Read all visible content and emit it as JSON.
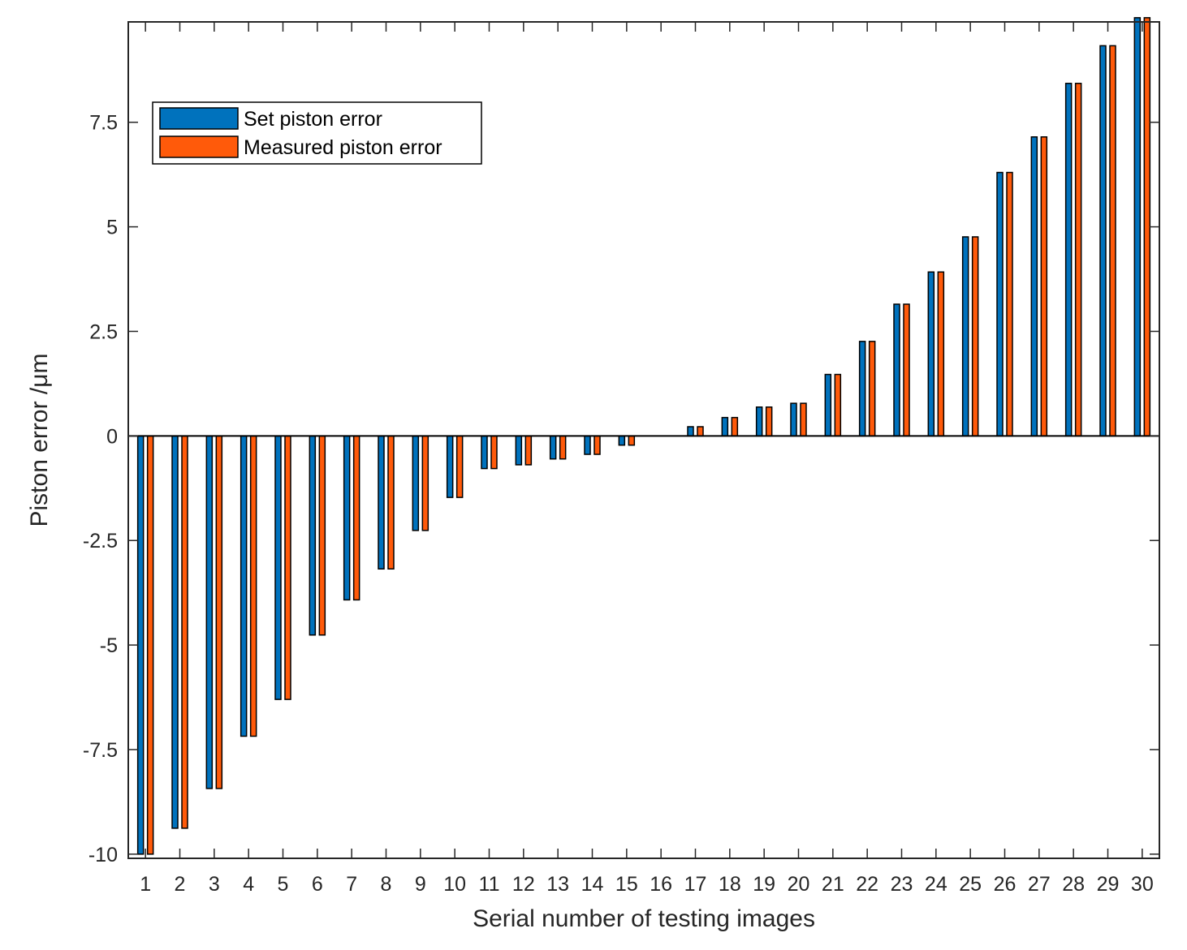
{
  "chart_data": {
    "type": "bar",
    "xlabel": "Serial number of testing images",
    "ylabel": "Piston error /μm",
    "ylim": [
      -10.1,
      9.9
    ],
    "yticks": [
      -10,
      -7.5,
      -5,
      -2.5,
      0,
      2.5,
      5,
      7.5
    ],
    "ytick_labels": [
      "-10",
      "-7.5",
      "-5",
      "-2.5",
      "0",
      "2.5",
      "5",
      "7.5"
    ],
    "categories": [
      "1",
      "2",
      "3",
      "4",
      "5",
      "6",
      "7",
      "8",
      "9",
      "10",
      "11",
      "12",
      "13",
      "14",
      "15",
      "16",
      "17",
      "18",
      "19",
      "20",
      "21",
      "22",
      "23",
      "24",
      "25",
      "26",
      "27",
      "28",
      "29",
      "30"
    ],
    "series": [
      {
        "name": "Set piston error",
        "color": "#0072BD",
        "values": [
          -10.0,
          -9.38,
          -8.43,
          -7.18,
          -6.3,
          -4.76,
          -3.92,
          -3.18,
          -2.26,
          -1.47,
          -0.78,
          -0.69,
          -0.55,
          -0.44,
          -0.22,
          0.0,
          0.22,
          0.44,
          0.69,
          0.78,
          1.47,
          2.26,
          3.15,
          3.92,
          4.76,
          6.3,
          7.15,
          8.43,
          9.33,
          10.0
        ]
      },
      {
        "name": "Measured piston error",
        "color": "#FF5A0A",
        "values": [
          -10.0,
          -9.38,
          -8.43,
          -7.18,
          -6.3,
          -4.76,
          -3.92,
          -3.18,
          -2.26,
          -1.47,
          -0.78,
          -0.69,
          -0.55,
          -0.44,
          -0.22,
          0.0,
          0.22,
          0.44,
          0.69,
          0.78,
          1.47,
          2.26,
          3.15,
          3.92,
          4.76,
          6.3,
          7.15,
          8.43,
          9.33,
          10.0
        ]
      }
    ],
    "grid": false,
    "legend_position": "top-left",
    "box": true
  }
}
